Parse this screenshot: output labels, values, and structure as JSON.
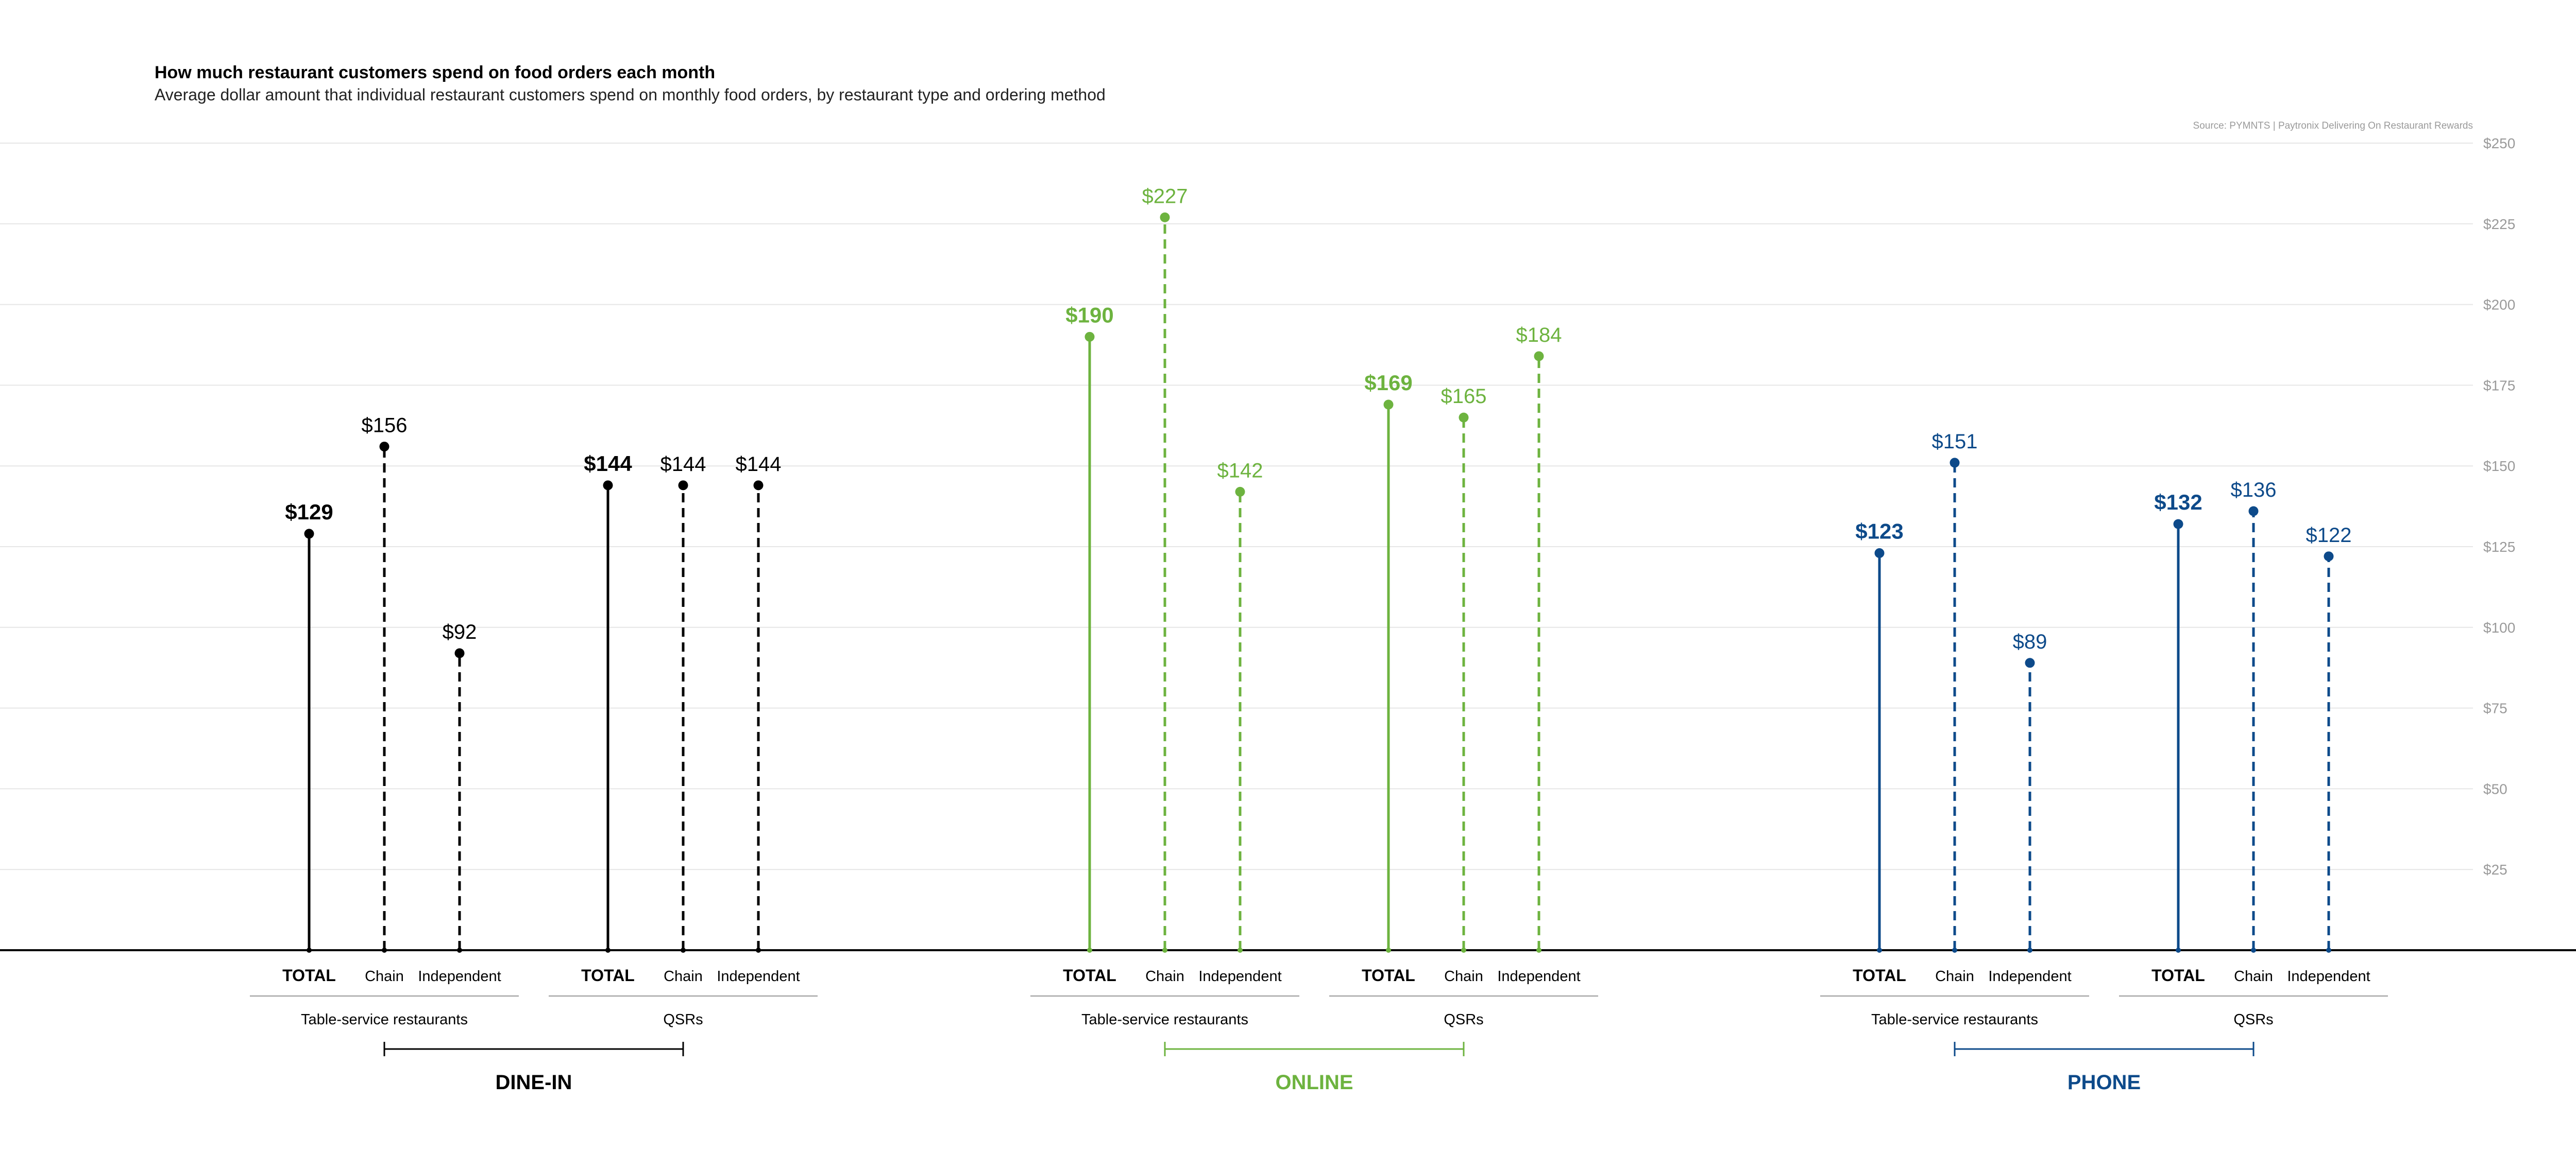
{
  "title": "How much restaurant customers spend on food orders each month",
  "subtitle": "Average dollar amount that individual restaurant customers spend on monthly food orders, by restaurant type and ordering method",
  "source": "Source: PYMNTS | Paytronix Delivering On Restaurant Rewards",
  "chart_data": {
    "type": "lollipop",
    "title": "How much restaurant customers spend on food orders each month",
    "subtitle": "Average dollar amount that individual restaurant customers spend on monthly food orders, by restaurant type and ordering method",
    "y_axis": {
      "min": 0,
      "max": 250,
      "position": "right",
      "grid": true,
      "ticks": [
        25,
        50,
        75,
        100,
        125,
        150,
        175,
        200,
        225,
        250
      ],
      "tick_labels": [
        "$25",
        "$50",
        "$75",
        "$100",
        "$125",
        "$150",
        "$175",
        "$200",
        "$225",
        "$250"
      ]
    },
    "groups": [
      {
        "name": "DINE-IN",
        "color": "#000000",
        "subgroups": [
          {
            "name": "Table-service restaurants",
            "points": [
              {
                "label": "TOTAL",
                "value": 129,
                "display": "$129",
                "style": "solid"
              },
              {
                "label": "Chain",
                "value": 156,
                "display": "$156",
                "style": "dashed"
              },
              {
                "label": "Independent",
                "value": 92,
                "display": "$92",
                "style": "dashed"
              }
            ]
          },
          {
            "name": "QSRs",
            "points": [
              {
                "label": "TOTAL",
                "value": 144,
                "display": "$144",
                "style": "solid"
              },
              {
                "label": "Chain",
                "value": 144,
                "display": "$144",
                "style": "dashed"
              },
              {
                "label": "Independent",
                "value": 144,
                "display": "$144",
                "style": "dashed"
              }
            ]
          }
        ]
      },
      {
        "name": "ONLINE",
        "color": "#6db33f",
        "subgroups": [
          {
            "name": "Table-service restaurants",
            "points": [
              {
                "label": "TOTAL",
                "value": 190,
                "display": "$190",
                "style": "solid"
              },
              {
                "label": "Chain",
                "value": 227,
                "display": "$227",
                "style": "dashed"
              },
              {
                "label": "Independent",
                "value": 142,
                "display": "$142",
                "style": "dashed"
              }
            ]
          },
          {
            "name": "QSRs",
            "points": [
              {
                "label": "TOTAL",
                "value": 169,
                "display": "$169",
                "style": "solid"
              },
              {
                "label": "Chain",
                "value": 165,
                "display": "$165",
                "style": "dashed"
              },
              {
                "label": "Independent",
                "value": 184,
                "display": "$184",
                "style": "dashed"
              }
            ]
          }
        ]
      },
      {
        "name": "PHONE",
        "color": "#0d4a8a",
        "subgroups": [
          {
            "name": "Table-service restaurants",
            "points": [
              {
                "label": "TOTAL",
                "value": 123,
                "display": "$123",
                "style": "solid"
              },
              {
                "label": "Chain",
                "value": 151,
                "display": "$151",
                "style": "dashed"
              },
              {
                "label": "Independent",
                "value": 89,
                "display": "$89",
                "style": "dashed"
              }
            ]
          },
          {
            "name": "QSRs",
            "points": [
              {
                "label": "TOTAL",
                "value": 132,
                "display": "$132",
                "style": "solid"
              },
              {
                "label": "Chain",
                "value": 136,
                "display": "$136",
                "style": "dashed"
              },
              {
                "label": "Independent",
                "value": 122,
                "display": "$122",
                "style": "dashed"
              }
            ]
          }
        ]
      }
    ]
  }
}
